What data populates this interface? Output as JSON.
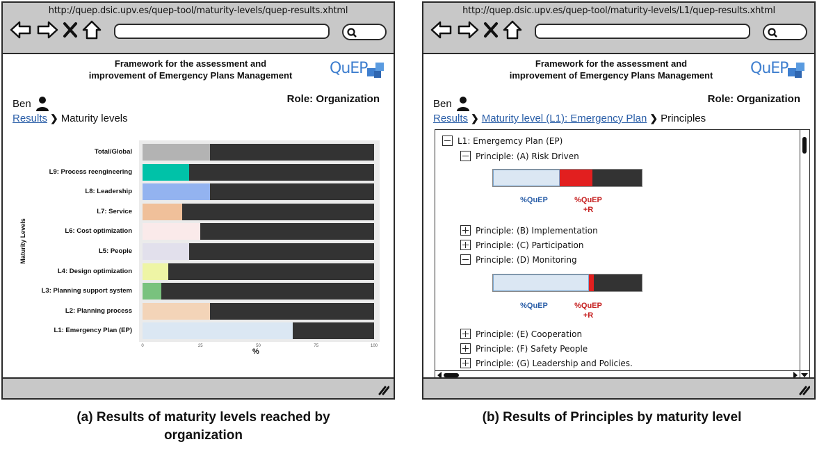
{
  "panel_a": {
    "url": "http://quep.dsic.upv.es/quep-tool/maturity-levels/quep-results.xhtml",
    "header_title_line1": "Framework for the assessment and",
    "header_title_line2": "improvement of Emergency Plans Management",
    "logo_text": "QuEP",
    "user_name": "Ben",
    "role": "Role: Organization",
    "breadcrumb_link": "Results",
    "breadcrumb_current": "Maturity levels",
    "caption_line1": "(a) Results of maturity levels reached by",
    "caption_line2": "organization"
  },
  "chart_data": {
    "type": "bar",
    "orientation": "horizontal",
    "stacked": true,
    "ylabel": "Maturity Levels",
    "xlabel": "%",
    "xlim": [
      0,
      100
    ],
    "xticks": [
      "0",
      "25",
      "50",
      "75",
      "100"
    ],
    "grid": false,
    "categories": [
      "Total/Global",
      "L9: Process reengineering",
      "L8: Leadership",
      "L7: Service",
      "L6: Cost optimization",
      "L5: People",
      "L4: Design optimization",
      "L3: Planning support system",
      "L2: Planning process",
      "L1: Emergency Plan (EP)"
    ],
    "values": [
      29,
      20,
      29,
      17,
      25,
      20,
      11,
      8,
      29,
      65
    ],
    "colors": [
      "#b3b3b3",
      "#00c2a8",
      "#93b3f0",
      "#f0c09a",
      "#faeaea",
      "#e2e0ec",
      "#eef5a5",
      "#79c27e",
      "#f3d4b8",
      "#dbe7f3"
    ],
    "remainder_color": "#333333"
  },
  "panel_b": {
    "url": "http://quep.dsic.upv.es/quep-tool/maturity-levels/L1/quep-results.xhtml",
    "header_title_line1": "Framework for the assessment and",
    "header_title_line2": "improvement of Emergency Plans Management",
    "logo_text": "QuEP",
    "user_name": "Ben",
    "role": "Role: Organization",
    "breadcrumb_link1": "Results",
    "breadcrumb_link2": "Maturity level (L1): Emergency Plan",
    "breadcrumb_current": "Principles",
    "tree_root": "L1: Emergemcy Plan (EP)",
    "principle_a": "Principle: (A) Risk Driven",
    "principle_b": "Principle: (B) Implementation",
    "principle_c": "Principle: (C) Participation",
    "principle_d": "Principle: (D)  Monitoring",
    "principle_e": "Principle: (E) Cooperation",
    "principle_f": "Principle: (F) Safety People",
    "principle_g": "Principle: (G) Leadership and Policies.",
    "legend_quep": "%QuEP",
    "legend_quep_r_line1": "%QuEP",
    "legend_quep_r_line2": "+R",
    "principle_a_quep": 45,
    "principle_a_quep_r": 22,
    "principle_d_quep": 65,
    "principle_d_quep_r": 3,
    "caption": "(b) Results of Principles by maturity level"
  }
}
